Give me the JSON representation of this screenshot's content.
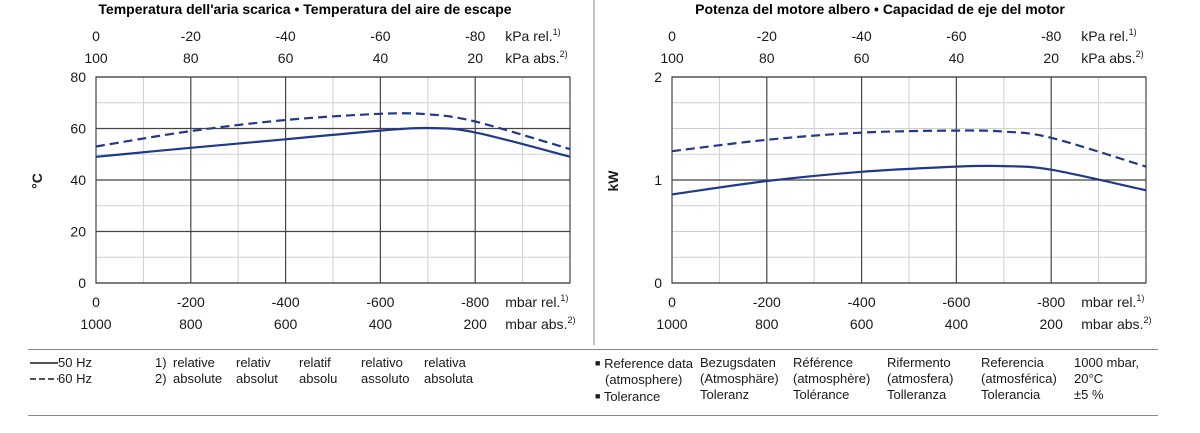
{
  "colors": {
    "series": "#1f3a8a",
    "grid_major": "#444444",
    "grid_minor": "#cfcfcf"
  },
  "chart_data": [
    {
      "type": "line",
      "title": "Temperatura dell'aria scarica  •  Temperatura del aire de escape",
      "ylabel": "°C",
      "ylim": [
        0,
        80
      ],
      "y_ticks": [
        "0",
        "20",
        "40",
        "60",
        "80"
      ],
      "x_bottom_rel_ticks": [
        "0",
        "-200",
        "-400",
        "-600",
        "-800"
      ],
      "x_bottom_rel_unit": "mbar rel.",
      "x_bottom_rel_sup": "1)",
      "x_bottom_abs_ticks": [
        "1000",
        "800",
        "600",
        "400",
        "200"
      ],
      "x_bottom_abs_unit": "mbar abs.",
      "x_bottom_abs_sup": "2)",
      "x_top_rel_ticks": [
        "0",
        "-20",
        "-40",
        "-60",
        "-80"
      ],
      "x_top_rel_unit": "kPa rel.",
      "x_top_rel_sup": "1)",
      "x_top_abs_ticks": [
        "100",
        "80",
        "60",
        "40",
        "20"
      ],
      "x_top_abs_unit": "kPa abs.",
      "x_top_abs_sup": "2)",
      "xlim_mbar_abs": [
        1000,
        0
      ],
      "grid": true,
      "series": [
        {
          "name": "50 Hz",
          "style": "solid",
          "x": [
            1000,
            800,
            600,
            400,
            300,
            200,
            0
          ],
          "y": [
            49,
            52.5,
            55.8,
            59.2,
            60.2,
            58.5,
            49
          ]
        },
        {
          "name": "60 Hz",
          "style": "dashed",
          "x": [
            1000,
            800,
            600,
            400,
            300,
            200,
            0
          ],
          "y": [
            53,
            59,
            63.3,
            65.7,
            65.5,
            62.7,
            52
          ]
        }
      ]
    },
    {
      "type": "line",
      "title": "Potenza del motore albero  •  Capacidad de eje del motor",
      "ylabel": "kW",
      "ylim": [
        0,
        2
      ],
      "y_ticks": [
        "0",
        "1",
        "2"
      ],
      "x_bottom_rel_ticks": [
        "0",
        "-200",
        "-400",
        "-600",
        "-800"
      ],
      "x_bottom_rel_unit": "mbar rel.",
      "x_bottom_rel_sup": "1)",
      "x_bottom_abs_ticks": [
        "1000",
        "800",
        "600",
        "400",
        "200"
      ],
      "x_bottom_abs_unit": "mbar abs.",
      "x_bottom_abs_sup": "2)",
      "x_top_rel_ticks": [
        "0",
        "-20",
        "-40",
        "-60",
        "-80"
      ],
      "x_top_rel_unit": "kPa rel.",
      "x_top_rel_sup": "1)",
      "x_top_abs_ticks": [
        "100",
        "80",
        "60",
        "40",
        "20"
      ],
      "x_top_abs_unit": "kPa abs.",
      "x_top_abs_sup": "2)",
      "xlim_mbar_abs": [
        1000,
        0
      ],
      "grid": true,
      "series": [
        {
          "name": "50 Hz",
          "style": "solid",
          "x": [
            1000,
            800,
            600,
            400,
            300,
            200,
            0
          ],
          "y": [
            0.86,
            0.99,
            1.08,
            1.13,
            1.135,
            1.1,
            0.9
          ]
        },
        {
          "name": "60 Hz",
          "style": "dashed",
          "x": [
            1000,
            800,
            600,
            400,
            300,
            200,
            0
          ],
          "y": [
            1.28,
            1.39,
            1.46,
            1.48,
            1.47,
            1.41,
            1.13
          ]
        }
      ]
    }
  ],
  "legend": {
    "s50": "50 Hz",
    "s60": "60 Hz",
    "notes": {
      "n1": "1)",
      "n2": "2)",
      "c1": [
        "relative",
        "absolute"
      ],
      "c2": [
        "relativ",
        "absolut"
      ],
      "c3": [
        "relatif",
        "absolu"
      ],
      "c4": [
        "relativo",
        "assoluto"
      ],
      "c5": [
        "relativa",
        "absoluta"
      ]
    },
    "reference": {
      "bullet1": "Reference data",
      "bullet1b": "(atmosphere)",
      "bullet2": "Tolerance",
      "de": [
        "Bezugsdaten",
        "(Atmosphäre)",
        "Toleranz"
      ],
      "fr": [
        "Référence",
        "(atmosphère)",
        "Tolérance"
      ],
      "it": [
        "Rifermento",
        "(atmosfera)",
        "Tolleranza"
      ],
      "es": [
        "Referencia",
        "(atmosférica)",
        "Tolerancia"
      ],
      "val": [
        "1000 mbar,",
        "20°C",
        "±5 %"
      ]
    }
  }
}
